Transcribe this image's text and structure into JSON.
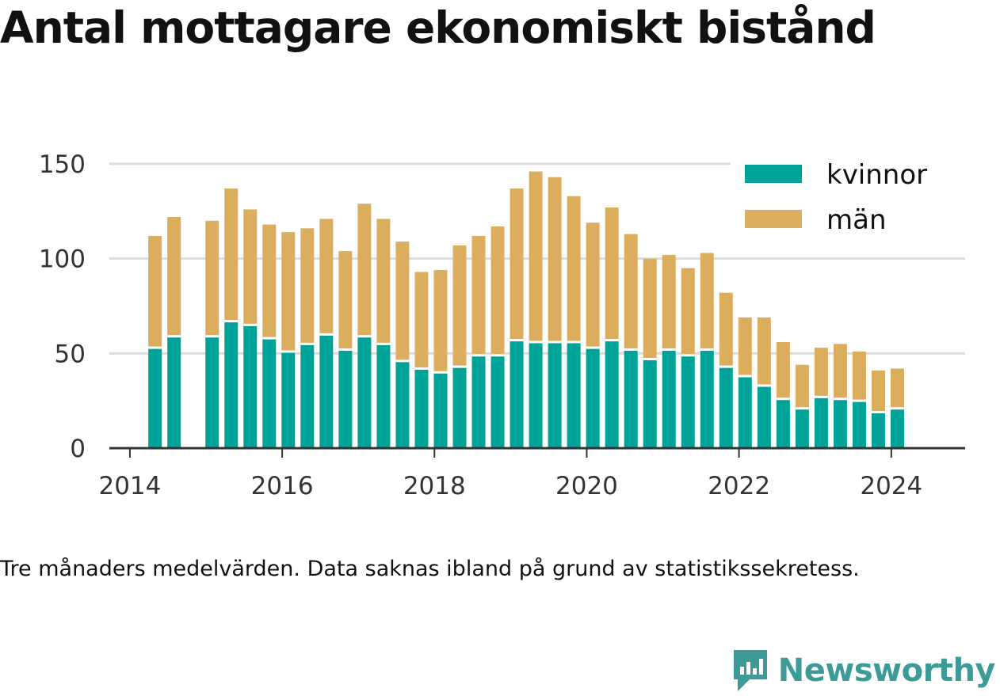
{
  "title": "Antal mottagare ekonomiskt bistånd",
  "note": "Tre månaders medelvärden. Data saknas ibland på grund av statistikssekretess.",
  "brand": {
    "name": "Newsworthy",
    "logo_icon": "bar-chart-icon",
    "color": "#3c9a97"
  },
  "chart_data": {
    "type": "bar",
    "stacked": true,
    "x_unit": "year",
    "xlim": [
      2013.73,
      2024.97
    ],
    "xticks": [
      2014,
      2016,
      2018,
      2020,
      2022,
      2024
    ],
    "ylim": [
      0,
      150
    ],
    "yticks": [
      0,
      50,
      100,
      150
    ],
    "grid": "horizontal",
    "legend_position": "top-right",
    "x": [
      2014.33,
      2014.58,
      2015.08,
      2015.33,
      2015.58,
      2015.83,
      2016.08,
      2016.33,
      2016.58,
      2016.83,
      2017.08,
      2017.33,
      2017.58,
      2017.83,
      2018.08,
      2018.33,
      2018.58,
      2018.83,
      2019.08,
      2019.33,
      2019.58,
      2019.83,
      2020.08,
      2020.33,
      2020.58,
      2020.83,
      2021.08,
      2021.33,
      2021.58,
      2021.83,
      2022.08,
      2022.33,
      2022.58,
      2022.83,
      2023.08,
      2023.33,
      2023.58,
      2023.83,
      2024.08
    ],
    "series": [
      {
        "name": "kvinnor",
        "color": "#00a398",
        "values": [
          53,
          59,
          59,
          67,
          65,
          58,
          51,
          55,
          60,
          52,
          59,
          55,
          46,
          42,
          40,
          43,
          49,
          49,
          57,
          56,
          56,
          56,
          53,
          57,
          52,
          47,
          52,
          49,
          52,
          43,
          38,
          33,
          26,
          21,
          27,
          26,
          25,
          19,
          21
        ]
      },
      {
        "name": "män",
        "color": "#dbae5e",
        "values": [
          59,
          63,
          61,
          70,
          61,
          60,
          63,
          61,
          61,
          52,
          70,
          66,
          63,
          51,
          54,
          64,
          63,
          68,
          80,
          90,
          87,
          77,
          66,
          70,
          61,
          53,
          50,
          46,
          51,
          39,
          31,
          36,
          30,
          23,
          26,
          29,
          26,
          22,
          21
        ]
      }
    ]
  }
}
